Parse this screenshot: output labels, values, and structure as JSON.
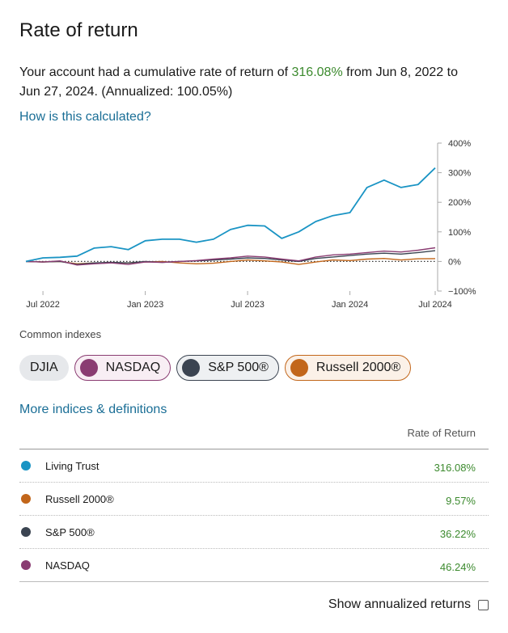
{
  "title": "Rate of return",
  "summary": {
    "prefix": "Your account had a cumulative rate of return of ",
    "rate": "316.08%",
    "middle": " from Jun 8, 2022 to Jun 27, 2024. (Annualized: 100.05%)"
  },
  "calc_link": "How is this calculated?",
  "colors": {
    "living_trust": "#1a94c4",
    "nasdaq": "#8a3c72",
    "sp500": "#3b4451",
    "russell": "#c2661a",
    "positive": "#3c8a2e",
    "link": "#1a6e96"
  },
  "chart_data": {
    "type": "line",
    "x": [
      "Jun 2022",
      "Jul 2022",
      "Aug 2022",
      "Sep 2022",
      "Oct 2022",
      "Nov 2022",
      "Dec 2022",
      "Jan 2023",
      "Feb 2023",
      "Mar 2023",
      "Apr 2023",
      "May 2023",
      "Jun 2023",
      "Jul 2023",
      "Aug 2023",
      "Sep 2023",
      "Oct 2023",
      "Nov 2023",
      "Dec 2023",
      "Jan 2024",
      "Feb 2024",
      "Mar 2024",
      "Apr 2024",
      "May 2024",
      "Jun 2024"
    ],
    "x_tick_labels": [
      "Jul 2022",
      "Jan 2023",
      "Jul 2023",
      "Jan 2024",
      "Jul 2024"
    ],
    "y_tick_labels": [
      "400%",
      "300%",
      "200%",
      "100%",
      "0%",
      "−100%"
    ],
    "ylim": [
      -100,
      400
    ],
    "series": [
      {
        "name": "Living Trust",
        "values": [
          0,
          12,
          14,
          18,
          45,
          50,
          40,
          70,
          75,
          75,
          65,
          75,
          108,
          122,
          120,
          78,
          100,
          135,
          155,
          165,
          250,
          275,
          250,
          260,
          316
        ]
      },
      {
        "name": "Russell 2000®",
        "values": [
          0,
          -2,
          0,
          -8,
          -5,
          -5,
          -5,
          -2,
          0,
          -5,
          -8,
          -6,
          0,
          5,
          2,
          -2,
          -10,
          -2,
          5,
          3,
          8,
          10,
          5,
          9,
          9.57
        ]
      },
      {
        "name": "S&P 500®",
        "values": [
          0,
          -2,
          0,
          -10,
          -5,
          -3,
          -5,
          0,
          -3,
          0,
          2,
          5,
          8,
          12,
          10,
          5,
          0,
          10,
          15,
          20,
          25,
          28,
          25,
          30,
          36.22
        ]
      },
      {
        "name": "NASDAQ",
        "values": [
          0,
          -2,
          2,
          -12,
          -8,
          -5,
          -10,
          -2,
          -3,
          0,
          3,
          8,
          12,
          18,
          15,
          8,
          2,
          15,
          22,
          25,
          30,
          35,
          32,
          38,
          46.24
        ]
      }
    ]
  },
  "common_indexes_label": "Common indexes",
  "chips": {
    "djia": "DJIA",
    "nasdaq": "NASDAQ",
    "sp500": "S&P 500®",
    "russell": "Russell 2000®"
  },
  "more_link": "More indices & definitions",
  "table": {
    "header": "Rate of Return",
    "rows": [
      {
        "name": "Living Trust",
        "value": "316.08%"
      },
      {
        "name": "Russell 2000®",
        "value": "9.57%"
      },
      {
        "name": "S&P 500®",
        "value": "36.22%"
      },
      {
        "name": "NASDAQ",
        "value": "46.24%"
      }
    ]
  },
  "annualized_label": "Show annualized returns"
}
